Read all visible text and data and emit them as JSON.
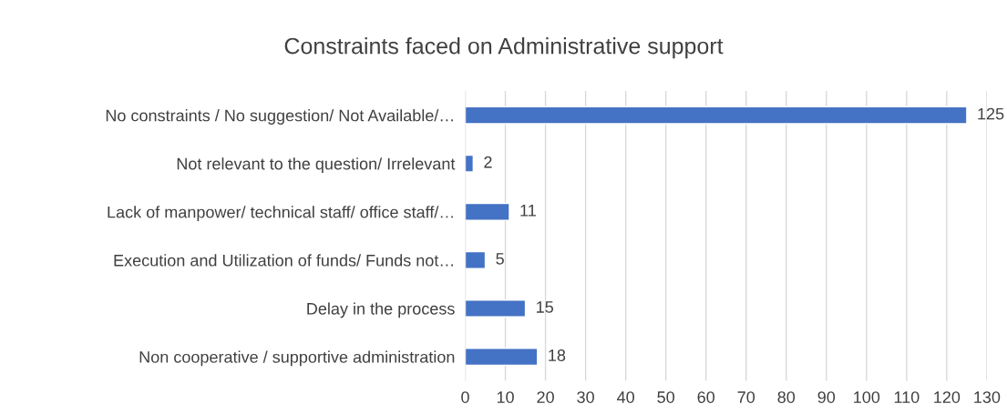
{
  "chart_data": {
    "type": "bar",
    "orientation": "horizontal",
    "title": "Constraints faced on Administrative support",
    "categories": [
      "No constraints / No suggestion/ Not Available/…",
      "Not relevant to the question/ Irrelevant",
      "Lack of manpower/ technical staff/ office staff/…",
      "Execution and Utilization of funds/ Funds not…",
      "Delay in the process",
      "Non cooperative / supportive administration"
    ],
    "values": [
      125,
      2,
      11,
      5,
      15,
      18
    ],
    "color": "#4472c4",
    "xlim": [
      0,
      130
    ],
    "xticks": [
      0,
      10,
      20,
      30,
      40,
      50,
      60,
      70,
      80,
      90,
      100,
      110,
      120,
      130
    ],
    "grid": "x",
    "data_labels": true,
    "legend": false
  }
}
